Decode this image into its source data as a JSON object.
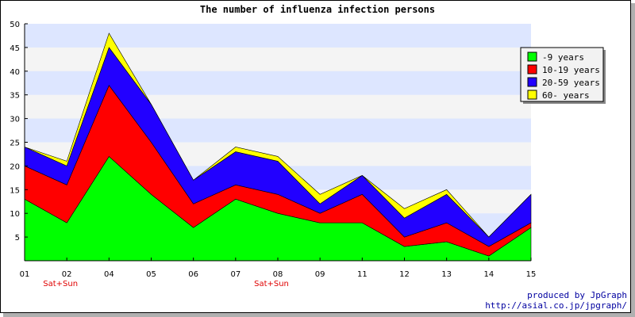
{
  "chart_data": {
    "type": "area",
    "stacked": true,
    "title": "The number of influenza infection persons",
    "categories": [
      "01",
      "02",
      "04",
      "05",
      "06",
      "07",
      "08",
      "09",
      "11",
      "12",
      "13",
      "14",
      "15"
    ],
    "category_sublabels": [
      "",
      "Sat+Sun",
      "",
      "",
      "",
      "",
      "Sat+Sun",
      "",
      "",
      "",
      "",
      "",
      ""
    ],
    "yticks": [
      5,
      10,
      15,
      20,
      25,
      30,
      35,
      40,
      45,
      50
    ],
    "ylim": [
      0,
      50
    ],
    "grid": true,
    "legend_position": "top-right",
    "series": [
      {
        "name": "-9 years",
        "color": "#00ff00",
        "values": [
          13,
          8,
          22,
          14,
          7,
          13,
          10,
          8,
          8,
          3,
          4,
          1,
          7
        ]
      },
      {
        "name": "10-19 years",
        "color": "#ff0000",
        "values": [
          7,
          8,
          15,
          11,
          5,
          3,
          4,
          2,
          6,
          2,
          4,
          2,
          1
        ]
      },
      {
        "name": "20-59 years",
        "color": "#2200ff",
        "values": [
          4,
          4,
          8,
          8,
          5,
          7,
          7,
          2,
          4,
          4,
          6,
          2,
          6
        ]
      },
      {
        "name": "60- years",
        "color": "#ffff00",
        "values": [
          0,
          1,
          3,
          0,
          0,
          1,
          1,
          2,
          0,
          2,
          1,
          0,
          0
        ]
      }
    ]
  },
  "credits": {
    "line1": "produced by JpGraph",
    "line2": "http://asial.co.jp/jpgraph/"
  }
}
